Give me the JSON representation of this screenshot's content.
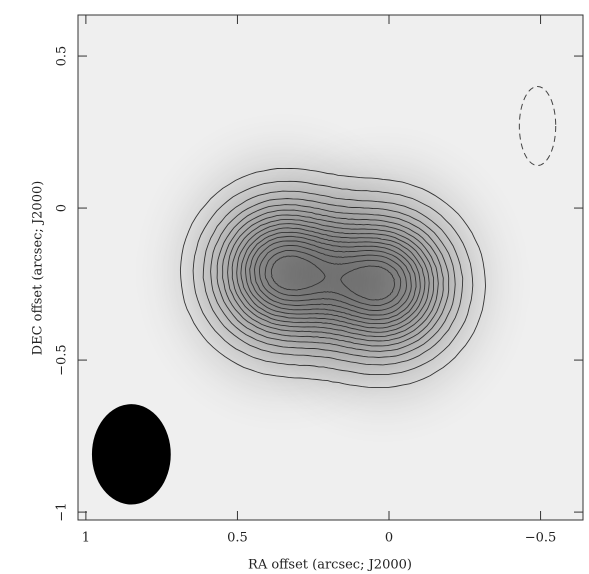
{
  "chart_data": {
    "type": "contour",
    "x_label": "RA offset (arcsec; J2000)",
    "y_label": "DEC offset (arcsec; J2000)",
    "xlim": [
      1.026,
      -0.64
    ],
    "ylim": [
      -1.026,
      0.635
    ],
    "xticks": [
      1,
      0.5,
      0,
      {
        "value": -0.5,
        "label": "−0.5"
      }
    ],
    "yticks": [
      {
        "value": -1,
        "label": "−1"
      },
      {
        "value": -0.5,
        "label": "−0.5"
      },
      0,
      0.5
    ],
    "peaks": [
      {
        "x": 0.35,
        "y": -0.21,
        "width": 0.14
      },
      {
        "x": 0.02,
        "y": -0.25,
        "width": 0.14
      }
    ],
    "levels": [
      0.05,
      0.1,
      0.16,
      0.22,
      0.28,
      0.34,
      0.4,
      0.46,
      0.52,
      0.58,
      0.64,
      0.7,
      0.76,
      0.82,
      0.88,
      0.94
    ],
    "beam": {
      "x": 0.85,
      "y": -0.81,
      "width": 0.26,
      "height": 0.33
    },
    "negative_contour": {
      "x": -0.49,
      "y": 0.27,
      "width": 0.12,
      "height": 0.26
    }
  }
}
